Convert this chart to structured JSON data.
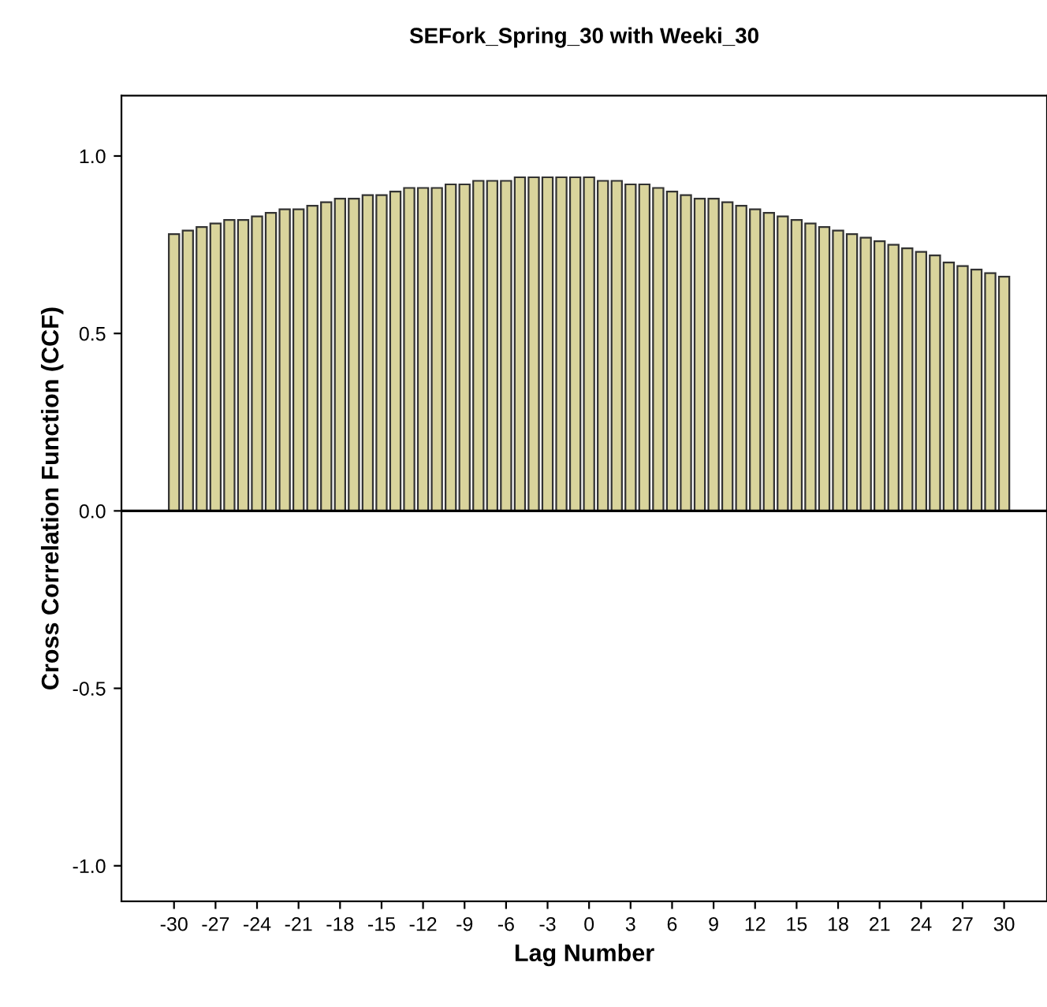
{
  "chart_data": {
    "type": "bar",
    "title": "SEFork_Spring_30 with Weeki_30",
    "xlabel": "Lag Number",
    "ylabel": "Cross Correlation Function (CCF)",
    "x": [
      -30,
      -29,
      -28,
      -27,
      -26,
      -25,
      -24,
      -23,
      -22,
      -21,
      -20,
      -19,
      -18,
      -17,
      -16,
      -15,
      -14,
      -13,
      -12,
      -11,
      -10,
      -9,
      -8,
      -7,
      -6,
      -5,
      -4,
      -3,
      -2,
      -1,
      0,
      1,
      2,
      3,
      4,
      5,
      6,
      7,
      8,
      9,
      10,
      11,
      12,
      13,
      14,
      15,
      16,
      17,
      18,
      19,
      20,
      21,
      22,
      23,
      24,
      25,
      26,
      27,
      28,
      29,
      30
    ],
    "values": [
      0.78,
      0.79,
      0.8,
      0.81,
      0.82,
      0.82,
      0.83,
      0.84,
      0.85,
      0.85,
      0.86,
      0.87,
      0.88,
      0.88,
      0.89,
      0.89,
      0.9,
      0.91,
      0.91,
      0.91,
      0.92,
      0.92,
      0.93,
      0.93,
      0.93,
      0.94,
      0.94,
      0.94,
      0.94,
      0.94,
      0.94,
      0.93,
      0.93,
      0.92,
      0.92,
      0.91,
      0.9,
      0.89,
      0.88,
      0.88,
      0.87,
      0.86,
      0.85,
      0.84,
      0.83,
      0.82,
      0.81,
      0.8,
      0.79,
      0.78,
      0.77,
      0.76,
      0.75,
      0.74,
      0.73,
      0.72,
      0.7,
      0.69,
      0.68,
      0.67,
      0.66
    ],
    "color": "#d9d49c",
    "xlim": [
      -33.8,
      33.1
    ],
    "xticks": [
      -30,
      -27,
      -24,
      -21,
      -18,
      -15,
      -12,
      -9,
      -6,
      -3,
      0,
      3,
      6,
      9,
      12,
      15,
      18,
      21,
      24,
      27,
      30
    ],
    "ylim": [
      -1.1,
      1.17
    ],
    "yticks": [
      {
        "value": -1.0,
        "label": "-1.0"
      },
      {
        "value": -0.5,
        "label": "-0.5"
      },
      {
        "value": 0.0,
        "label": "0.0"
      },
      {
        "value": 0.5,
        "label": "0.5"
      },
      {
        "value": 1.0,
        "label": "1.0"
      }
    ],
    "ref_lines": [
      {
        "axis": "y",
        "value": 0,
        "color": "#000000"
      }
    ],
    "grid": false,
    "legend": false
  }
}
